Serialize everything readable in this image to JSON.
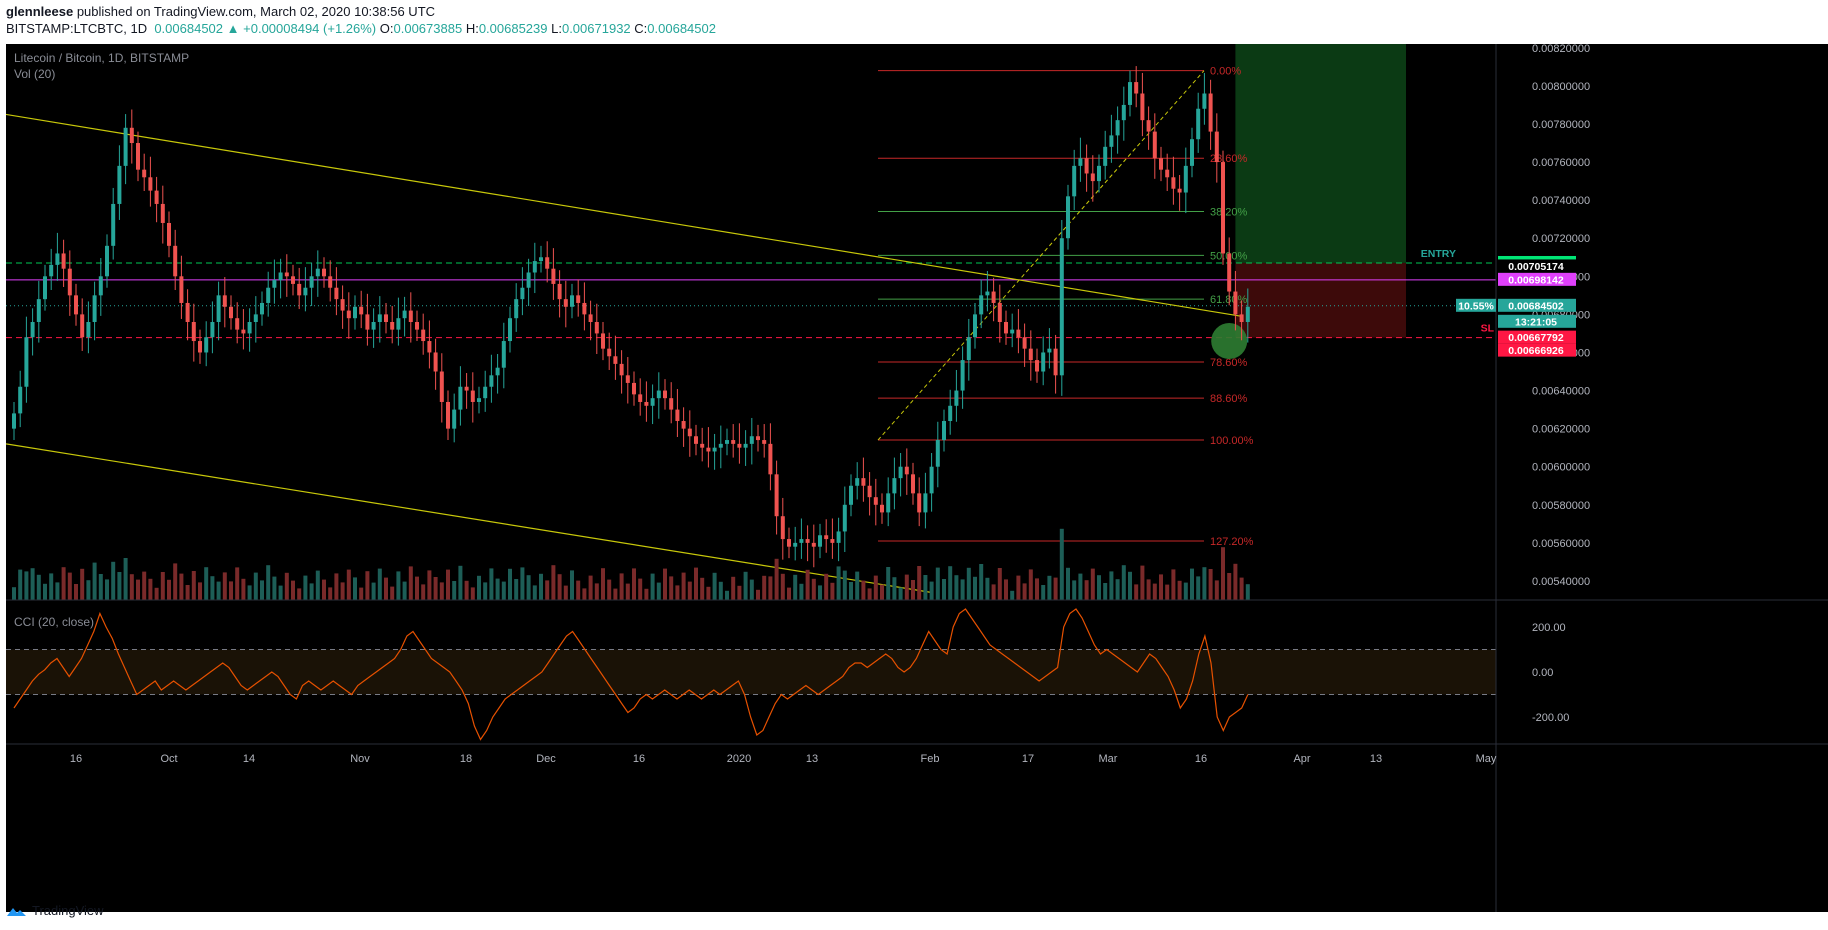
{
  "header": {
    "publisher": "glennleese",
    "published_text": "published on TradingView.com, March 02, 2020 10:38:56 UTC",
    "symbol": "BITSTAMP:LTCBTC, 1D",
    "last": "0.00684502",
    "change": "+0.00008494 (+1.26%)",
    "open_label": "O:",
    "open": "0.00673885",
    "high_label": "H:",
    "high": "0.00685239",
    "low_label": "L:",
    "low": "0.00671932",
    "close_label": "C:",
    "close": "0.00684502"
  },
  "pane_titles": {
    "main": "Litecoin / Bitcoin, 1D, BITSTAMP",
    "volume": "Vol (20)",
    "cci": "CCI (20, close)"
  },
  "footer": {
    "brand": "TradingView"
  },
  "colors": {
    "up": "#26a69a",
    "down": "#ef5350",
    "trendline": "#c8c80a",
    "fib_red": "#c62828",
    "fib_green": "#43a047",
    "cci": "#e65100",
    "entry": "#00c853",
    "magenta": "#e040fb",
    "sl": "#ff1744"
  },
  "chart_data": {
    "type": "candlestick",
    "symbol": "LTCBTC",
    "interval": "1D",
    "ylim": [
      0.0053,
      0.00822
    ],
    "y_ticks": [
      "0.00820000",
      "0.00800000",
      "0.00780000",
      "0.00760000",
      "0.00740000",
      "0.00720000",
      "0.00700000",
      "0.00680000",
      "0.00660000",
      "0.00640000",
      "0.00620000",
      "0.00600000",
      "0.00580000",
      "0.00560000",
      "0.00540000"
    ],
    "x_ticks": [
      "16",
      "Oct",
      "14",
      "Nov",
      "18",
      "Dec",
      "16",
      "2020",
      "13",
      "Feb",
      "17",
      "Mar",
      "16",
      "Apr",
      "13",
      "May"
    ],
    "close_series": [
      0.00628,
      0.00642,
      0.00668,
      0.00676,
      0.00688,
      0.007,
      0.00706,
      0.00712,
      0.00704,
      0.0069,
      0.0068,
      0.00668,
      0.00676,
      0.0069,
      0.007,
      0.00716,
      0.00738,
      0.00758,
      0.00778,
      0.0077,
      0.00756,
      0.00752,
      0.00745,
      0.00738,
      0.00728,
      0.00716,
      0.007,
      0.00686,
      0.00676,
      0.00666,
      0.0066,
      0.00668,
      0.00676,
      0.0069,
      0.00684,
      0.00678,
      0.00672,
      0.0067,
      0.00676,
      0.0068,
      0.00686,
      0.00694,
      0.00698,
      0.00702,
      0.007,
      0.00696,
      0.0069,
      0.00694,
      0.007,
      0.00704,
      0.007,
      0.00694,
      0.00688,
      0.00682,
      0.00678,
      0.00684,
      0.0068,
      0.00672,
      0.00676,
      0.0068,
      0.00676,
      0.00672,
      0.00678,
      0.00682,
      0.00676,
      0.00672,
      0.00666,
      0.0066,
      0.0065,
      0.00634,
      0.0062,
      0.0063,
      0.00642,
      0.0064,
      0.00634,
      0.00636,
      0.00642,
      0.00648,
      0.00652,
      0.00666,
      0.00678,
      0.00688,
      0.00694,
      0.00702,
      0.00708,
      0.0071,
      0.00704,
      0.00696,
      0.00688,
      0.00684,
      0.0069,
      0.00686,
      0.0068,
      0.00676,
      0.0067,
      0.00662,
      0.00658,
      0.00654,
      0.00648,
      0.00644,
      0.00638,
      0.00634,
      0.00632,
      0.00636,
      0.0064,
      0.00636,
      0.0063,
      0.00624,
      0.0062,
      0.00616,
      0.00612,
      0.0061,
      0.00608,
      0.0061,
      0.00612,
      0.00614,
      0.00612,
      0.0061,
      0.00612,
      0.00616,
      0.00614,
      0.00612,
      0.00596,
      0.00574,
      0.00562,
      0.00558,
      0.0056,
      0.00562,
      0.0056,
      0.00558,
      0.00564,
      0.00562,
      0.0056,
      0.00566,
      0.0058,
      0.0059,
      0.00594,
      0.0059,
      0.00584,
      0.0058,
      0.00576,
      0.00586,
      0.00594,
      0.006,
      0.00596,
      0.00586,
      0.00576,
      0.00586,
      0.006,
      0.00614,
      0.00624,
      0.00632,
      0.0064,
      0.00656,
      0.00668,
      0.0068,
      0.0069,
      0.00692,
      0.00686,
      0.00676,
      0.0067,
      0.00672,
      0.00668,
      0.00662,
      0.00656,
      0.0065,
      0.0066,
      0.00662,
      0.00648,
      0.0072,
      0.00742,
      0.00758,
      0.00762,
      0.00754,
      0.0075,
      0.00758,
      0.00768,
      0.00774,
      0.00782,
      0.0079,
      0.00802,
      0.00796,
      0.00782,
      0.00776,
      0.00762,
      0.00756,
      0.00752,
      0.00746,
      0.00744,
      0.00758,
      0.00772,
      0.00788,
      0.00796,
      0.00776,
      0.0076,
      0.00712,
      0.00692,
      0.0068,
      0.00676,
      0.00684
    ],
    "trendlines": [
      {
        "points": [
          [
            "2019-09-07",
            0.00785
          ],
          [
            "2020-02-28",
            0.00679
          ]
        ]
      },
      {
        "points": [
          [
            "2019-09-07",
            0.00612
          ],
          [
            "2020-01-30",
            0.00534
          ]
        ]
      }
    ],
    "fibonacci": {
      "levels": [
        {
          "label": "0.00%",
          "price": 0.00808
        },
        {
          "label": "23.60%",
          "price": 0.00762
        },
        {
          "label": "38.20%",
          "price": 0.00734
        },
        {
          "label": "50.00%",
          "price": 0.00711
        },
        {
          "label": "61.80%",
          "price": 0.00688
        },
        {
          "label": "78.60%",
          "price": 0.00655
        },
        {
          "label": "88.60%",
          "price": 0.00636
        },
        {
          "label": "100.00%",
          "price": 0.00614
        },
        {
          "label": "127.20%",
          "price": 0.00561
        }
      ]
    },
    "horizontal_lines": [
      {
        "label": "ENTRY",
        "price": "0.00706995"
      },
      {
        "label": "",
        "price": "0.00698142"
      },
      {
        "label": "SL",
        "price": "0.00667792"
      }
    ],
    "price_labels": [
      {
        "value": "0.00706995",
        "bg": "#00e676",
        "fg": "#000"
      },
      {
        "value": "0.00705174",
        "bg": "#000000",
        "fg": "#ffffff"
      },
      {
        "value": "0.00698142",
        "bg": "#e040fb",
        "fg": "#ffffff"
      },
      {
        "value": "0.00684502",
        "bg": "#26a69a",
        "fg": "#ffffff"
      },
      {
        "value": "13:21:05",
        "bg": "#26a69a",
        "fg": "#ffffff"
      },
      {
        "value": "0.00667792",
        "bg": "#ff1744",
        "fg": "#ffffff"
      },
      {
        "value": "0.00666926",
        "bg": "#ff1744",
        "fg": "#ffffff"
      }
    ],
    "volume_change_label": "10.55%",
    "cci": {
      "y_ticks": [
        "200.00",
        "0.00",
        "-200.00"
      ],
      "bands": [
        100,
        -100
      ],
      "values": [
        -160,
        -120,
        -80,
        -40,
        -10,
        10,
        40,
        60,
        20,
        -20,
        20,
        60,
        120,
        180,
        260,
        200,
        150,
        80,
        20,
        -40,
        -100,
        -80,
        -60,
        -40,
        -80,
        -60,
        -40,
        -60,
        -80,
        -60,
        -40,
        -20,
        0,
        20,
        40,
        20,
        -20,
        -60,
        -80,
        -60,
        -40,
        -20,
        0,
        -20,
        -60,
        -100,
        -120,
        -60,
        -40,
        -60,
        -80,
        -60,
        -40,
        -60,
        -80,
        -100,
        -60,
        -40,
        -20,
        0,
        20,
        40,
        60,
        100,
        160,
        180,
        140,
        100,
        60,
        40,
        20,
        0,
        -40,
        -80,
        -140,
        -240,
        -300,
        -260,
        -200,
        -160,
        -120,
        -100,
        -80,
        -60,
        -40,
        -20,
        0,
        40,
        80,
        120,
        160,
        180,
        140,
        100,
        60,
        20,
        -20,
        -60,
        -100,
        -140,
        -180,
        -160,
        -120,
        -100,
        -120,
        -100,
        -80,
        -100,
        -120,
        -100,
        -80,
        -100,
        -120,
        -100,
        -80,
        -100,
        -80,
        -60,
        -40,
        -100,
        -200,
        -280,
        -260,
        -200,
        -140,
        -100,
        -120,
        -100,
        -80,
        -60,
        -80,
        -100,
        -80,
        -60,
        -40,
        -20,
        20,
        40,
        40,
        20,
        40,
        60,
        80,
        60,
        20,
        0,
        20,
        60,
        120,
        180,
        140,
        100,
        80,
        200,
        260,
        280,
        240,
        200,
        160,
        120,
        100,
        80,
        60,
        40,
        20,
        0,
        -20,
        -40,
        -20,
        0,
        20,
        200,
        260,
        280,
        240,
        180,
        120,
        80,
        100,
        80,
        60,
        40,
        20,
        0,
        40,
        80,
        60,
        20,
        -20,
        -80,
        -160,
        -120,
        -40,
        80,
        160,
        40,
        -200,
        -260,
        -200,
        -180,
        -160,
        -100
      ]
    }
  }
}
